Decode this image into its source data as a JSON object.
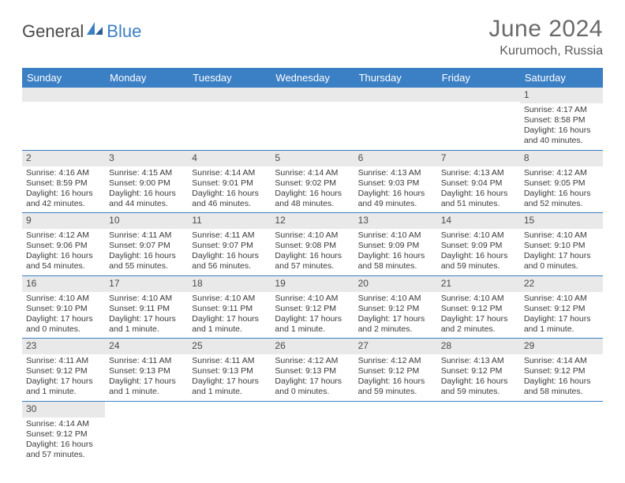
{
  "logo": {
    "text1": "General",
    "text2": "Blue"
  },
  "title": "June 2024",
  "location": "Kurumoch, Russia",
  "day_headers": [
    "Sunday",
    "Monday",
    "Tuesday",
    "Wednesday",
    "Thursday",
    "Friday",
    "Saturday"
  ],
  "colors": {
    "header_bg": "#3b7fc4",
    "header_fg": "#ffffff",
    "daynum_band": "#e9e9e9",
    "cell_border": "#3b7fc4",
    "text": "#3a3a3a"
  },
  "weeks": [
    [
      null,
      null,
      null,
      null,
      null,
      null,
      {
        "n": "1",
        "sunrise": "Sunrise: 4:17 AM",
        "sunset": "Sunset: 8:58 PM",
        "daylight": "Daylight: 16 hours and 40 minutes."
      }
    ],
    [
      {
        "n": "2",
        "sunrise": "Sunrise: 4:16 AM",
        "sunset": "Sunset: 8:59 PM",
        "daylight": "Daylight: 16 hours and 42 minutes."
      },
      {
        "n": "3",
        "sunrise": "Sunrise: 4:15 AM",
        "sunset": "Sunset: 9:00 PM",
        "daylight": "Daylight: 16 hours and 44 minutes."
      },
      {
        "n": "4",
        "sunrise": "Sunrise: 4:14 AM",
        "sunset": "Sunset: 9:01 PM",
        "daylight": "Daylight: 16 hours and 46 minutes."
      },
      {
        "n": "5",
        "sunrise": "Sunrise: 4:14 AM",
        "sunset": "Sunset: 9:02 PM",
        "daylight": "Daylight: 16 hours and 48 minutes."
      },
      {
        "n": "6",
        "sunrise": "Sunrise: 4:13 AM",
        "sunset": "Sunset: 9:03 PM",
        "daylight": "Daylight: 16 hours and 49 minutes."
      },
      {
        "n": "7",
        "sunrise": "Sunrise: 4:13 AM",
        "sunset": "Sunset: 9:04 PM",
        "daylight": "Daylight: 16 hours and 51 minutes."
      },
      {
        "n": "8",
        "sunrise": "Sunrise: 4:12 AM",
        "sunset": "Sunset: 9:05 PM",
        "daylight": "Daylight: 16 hours and 52 minutes."
      }
    ],
    [
      {
        "n": "9",
        "sunrise": "Sunrise: 4:12 AM",
        "sunset": "Sunset: 9:06 PM",
        "daylight": "Daylight: 16 hours and 54 minutes."
      },
      {
        "n": "10",
        "sunrise": "Sunrise: 4:11 AM",
        "sunset": "Sunset: 9:07 PM",
        "daylight": "Daylight: 16 hours and 55 minutes."
      },
      {
        "n": "11",
        "sunrise": "Sunrise: 4:11 AM",
        "sunset": "Sunset: 9:07 PM",
        "daylight": "Daylight: 16 hours and 56 minutes."
      },
      {
        "n": "12",
        "sunrise": "Sunrise: 4:10 AM",
        "sunset": "Sunset: 9:08 PM",
        "daylight": "Daylight: 16 hours and 57 minutes."
      },
      {
        "n": "13",
        "sunrise": "Sunrise: 4:10 AM",
        "sunset": "Sunset: 9:09 PM",
        "daylight": "Daylight: 16 hours and 58 minutes."
      },
      {
        "n": "14",
        "sunrise": "Sunrise: 4:10 AM",
        "sunset": "Sunset: 9:09 PM",
        "daylight": "Daylight: 16 hours and 59 minutes."
      },
      {
        "n": "15",
        "sunrise": "Sunrise: 4:10 AM",
        "sunset": "Sunset: 9:10 PM",
        "daylight": "Daylight: 17 hours and 0 minutes."
      }
    ],
    [
      {
        "n": "16",
        "sunrise": "Sunrise: 4:10 AM",
        "sunset": "Sunset: 9:10 PM",
        "daylight": "Daylight: 17 hours and 0 minutes."
      },
      {
        "n": "17",
        "sunrise": "Sunrise: 4:10 AM",
        "sunset": "Sunset: 9:11 PM",
        "daylight": "Daylight: 17 hours and 1 minute."
      },
      {
        "n": "18",
        "sunrise": "Sunrise: 4:10 AM",
        "sunset": "Sunset: 9:11 PM",
        "daylight": "Daylight: 17 hours and 1 minute."
      },
      {
        "n": "19",
        "sunrise": "Sunrise: 4:10 AM",
        "sunset": "Sunset: 9:12 PM",
        "daylight": "Daylight: 17 hours and 1 minute."
      },
      {
        "n": "20",
        "sunrise": "Sunrise: 4:10 AM",
        "sunset": "Sunset: 9:12 PM",
        "daylight": "Daylight: 17 hours and 2 minutes."
      },
      {
        "n": "21",
        "sunrise": "Sunrise: 4:10 AM",
        "sunset": "Sunset: 9:12 PM",
        "daylight": "Daylight: 17 hours and 2 minutes."
      },
      {
        "n": "22",
        "sunrise": "Sunrise: 4:10 AM",
        "sunset": "Sunset: 9:12 PM",
        "daylight": "Daylight: 17 hours and 1 minute."
      }
    ],
    [
      {
        "n": "23",
        "sunrise": "Sunrise: 4:11 AM",
        "sunset": "Sunset: 9:12 PM",
        "daylight": "Daylight: 17 hours and 1 minute."
      },
      {
        "n": "24",
        "sunrise": "Sunrise: 4:11 AM",
        "sunset": "Sunset: 9:13 PM",
        "daylight": "Daylight: 17 hours and 1 minute."
      },
      {
        "n": "25",
        "sunrise": "Sunrise: 4:11 AM",
        "sunset": "Sunset: 9:13 PM",
        "daylight": "Daylight: 17 hours and 1 minute."
      },
      {
        "n": "26",
        "sunrise": "Sunrise: 4:12 AM",
        "sunset": "Sunset: 9:13 PM",
        "daylight": "Daylight: 17 hours and 0 minutes."
      },
      {
        "n": "27",
        "sunrise": "Sunrise: 4:12 AM",
        "sunset": "Sunset: 9:12 PM",
        "daylight": "Daylight: 16 hours and 59 minutes."
      },
      {
        "n": "28",
        "sunrise": "Sunrise: 4:13 AM",
        "sunset": "Sunset: 9:12 PM",
        "daylight": "Daylight: 16 hours and 59 minutes."
      },
      {
        "n": "29",
        "sunrise": "Sunrise: 4:14 AM",
        "sunset": "Sunset: 9:12 PM",
        "daylight": "Daylight: 16 hours and 58 minutes."
      }
    ],
    [
      {
        "n": "30",
        "sunrise": "Sunrise: 4:14 AM",
        "sunset": "Sunset: 9:12 PM",
        "daylight": "Daylight: 16 hours and 57 minutes."
      },
      null,
      null,
      null,
      null,
      null,
      null
    ]
  ]
}
